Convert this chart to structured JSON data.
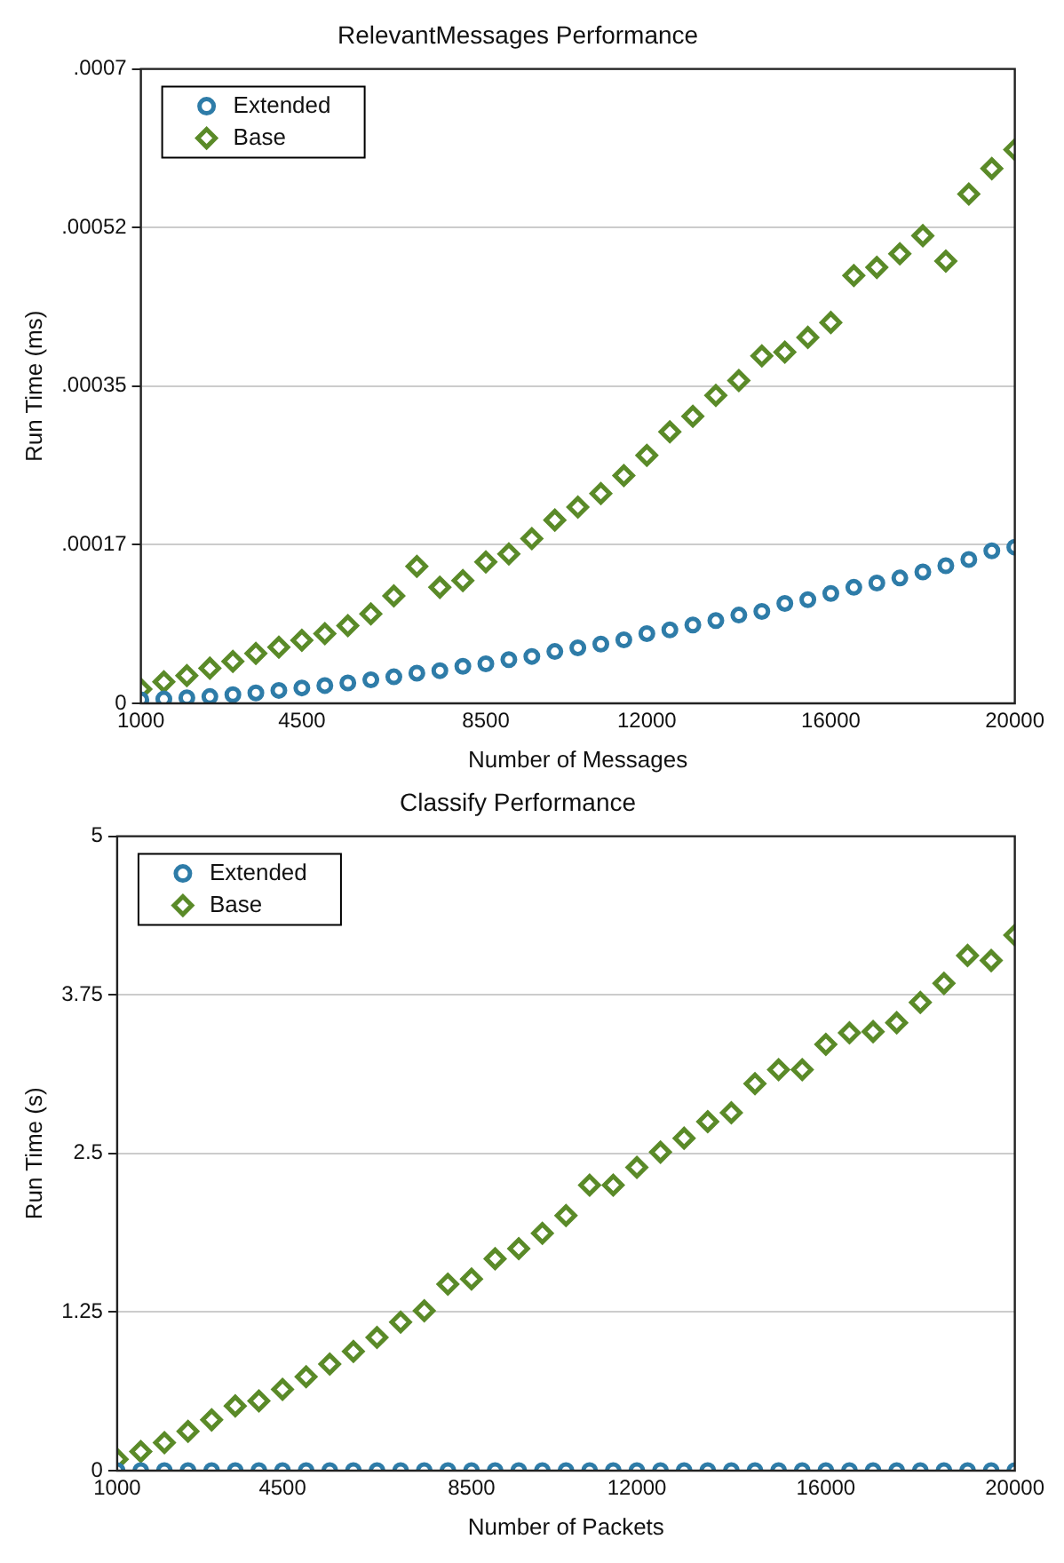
{
  "chart_data": [
    {
      "type": "scatter",
      "title": "RelevantMessages Performance",
      "xlabel": "Number of Messages",
      "ylabel": "Run Time (ms)",
      "x": [
        1000,
        1500,
        2000,
        2500,
        3000,
        3500,
        4000,
        4500,
        5000,
        5500,
        6000,
        6500,
        7000,
        7500,
        8000,
        8500,
        9000,
        9500,
        10000,
        10500,
        11000,
        11500,
        12000,
        12500,
        13000,
        13500,
        14000,
        14500,
        15000,
        15500,
        16000,
        16500,
        17000,
        17500,
        18000,
        18500,
        19000,
        19500,
        20000
      ],
      "series": [
        {
          "name": "Extended",
          "color": "#2e7ca8",
          "marker": "circle",
          "values": [
            4e-06,
            4.8e-06,
            6.1e-06,
            7.5e-06,
            9.5e-06,
            1.16e-05,
            1.43e-05,
            1.7e-05,
            1.97e-05,
            2.25e-05,
            2.59e-05,
            2.93e-05,
            3.34e-05,
            3.61e-05,
            4.09e-05,
            4.36e-05,
            4.83e-05,
            5.18e-05,
            5.72e-05,
            6.13e-05,
            6.54e-05,
            7.01e-05,
            7.7e-05,
            8.1e-05,
            8.65e-05,
            9.13e-05,
            9.74e-05,
            0.0001015,
            0.0001103,
            0.0001144,
            0.0001212,
            0.000128,
            0.0001328,
            0.0001383,
            0.000145,
            0.0001519,
            0.0001587,
            0.0001682,
            0.0001723
          ]
        },
        {
          "name": "Base",
          "color": "#5a8a28",
          "marker": "diamond",
          "values": [
            1.57e-05,
            2.38e-05,
            3.06e-05,
            3.88e-05,
            4.63e-05,
            5.52e-05,
            6.2e-05,
            6.95e-05,
            7.7e-05,
            8.58e-05,
            9.87e-05,
            0.0001185,
            0.0001512,
            0.000128,
            0.0001355,
            0.000156,
            0.0001648,
            0.0001818,
            0.0002022,
            0.0002166,
            0.0002315,
            0.0002513,
            0.0002737,
            0.0002996,
            0.0003167,
            0.0003398,
            0.0003561,
            0.0003834,
            0.0003875,
            0.0004038,
            0.0004202,
            0.000472,
            0.000481,
            0.000496,
            0.000516,
            0.000488,
            0.000562,
            0.00059,
            0.000611
          ]
        }
      ],
      "xlim": [
        1000,
        20000
      ],
      "xticks": [
        1000,
        4500,
        8500,
        12000,
        16000,
        20000
      ],
      "ylim": [
        0,
        0.0007
      ],
      "yticks": [
        0,
        {
          "value": 0.000175,
          "label": ".00017"
        },
        {
          "value": 0.00035,
          "label": ".00035"
        },
        {
          "value": 0.000525,
          "label": ".00052"
        },
        {
          "value": 0.0007,
          "label": ".0007"
        }
      ],
      "grid": "y",
      "legend": "top left"
    },
    {
      "type": "scatter",
      "title": "Classify Performance",
      "xlabel": "Number of Packets",
      "ylabel": "Run Time (s)",
      "x": [
        1000,
        1500,
        2000,
        2500,
        3000,
        3500,
        4000,
        4500,
        5000,
        5500,
        6000,
        6500,
        7000,
        7500,
        8000,
        8500,
        9000,
        9500,
        10000,
        10500,
        11000,
        11500,
        12000,
        12500,
        13000,
        13500,
        14000,
        14500,
        15000,
        15500,
        16000,
        16500,
        17000,
        17500,
        18000,
        18500,
        19000,
        19500,
        20000
      ],
      "series": [
        {
          "name": "Extended",
          "color": "#2e7ca8",
          "marker": "circle",
          "values": [
            0,
            0,
            0,
            0,
            0,
            0,
            0,
            0,
            0,
            0,
            0,
            0,
            0,
            0,
            0,
            0,
            0,
            0,
            0,
            0,
            0,
            0,
            0,
            0,
            0,
            0,
            0,
            0,
            0,
            0,
            0,
            0,
            0,
            0,
            0,
            0,
            0,
            0,
            0
          ]
        },
        {
          "name": "Base",
          "color": "#5a8a28",
          "marker": "diamond",
          "values": [
            0.09,
            0.15,
            0.22,
            0.31,
            0.4,
            0.51,
            0.55,
            0.64,
            0.74,
            0.84,
            0.94,
            1.05,
            1.17,
            1.26,
            1.47,
            1.51,
            1.67,
            1.75,
            1.87,
            2.01,
            2.25,
            2.25,
            2.39,
            2.51,
            2.62,
            2.75,
            2.82,
            3.05,
            3.16,
            3.16,
            3.36,
            3.45,
            3.46,
            3.53,
            3.69,
            3.84,
            4.06,
            4.02,
            4.22
          ]
        }
      ],
      "xlim": [
        1000,
        20000
      ],
      "xticks": [
        1000,
        4500,
        8500,
        12000,
        16000,
        20000
      ],
      "ylim": [
        0,
        5
      ],
      "yticks": [
        0,
        1.25,
        2.5,
        3.75,
        5
      ],
      "grid": "y",
      "legend": "top left"
    }
  ]
}
